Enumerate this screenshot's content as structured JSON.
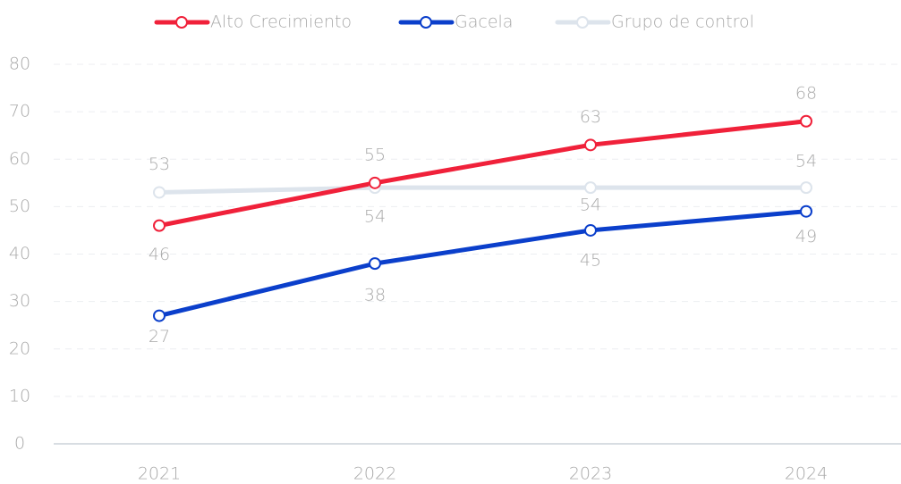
{
  "chart_data": {
    "type": "line",
    "categories": [
      "2021",
      "2022",
      "2023",
      "2024"
    ],
    "series": [
      {
        "name": "Alto Crecimiento",
        "color": "#f0213a",
        "values": [
          46,
          55,
          63,
          68
        ]
      },
      {
        "name": "Gacela",
        "color": "#0b3fcb",
        "values": [
          27,
          38,
          45,
          49
        ]
      },
      {
        "name": "Grupo de control",
        "color": "#dde4ec",
        "values": [
          53,
          54,
          54,
          54
        ]
      }
    ],
    "ylim": [
      0,
      80
    ],
    "yticks": [
      0,
      10,
      20,
      30,
      40,
      50,
      60,
      70,
      80
    ],
    "grid": true,
    "legend": "top"
  }
}
